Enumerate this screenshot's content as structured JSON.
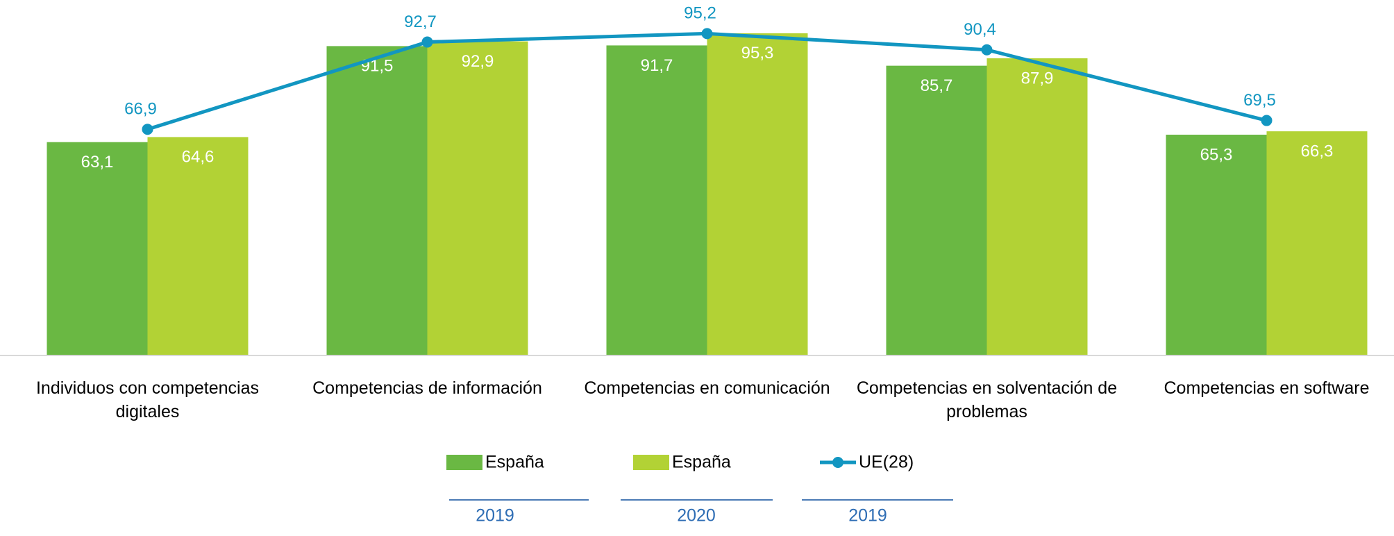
{
  "chart_data": {
    "type": "bar_line",
    "categories": [
      "Individuos con competencias digitales",
      "Competencias de información",
      "Competencias en comunicación",
      "Competencias en solventación de problemas",
      "Competencias en software"
    ],
    "series": [
      {
        "name": "España",
        "legend_sublabel": "2019",
        "type": "bar",
        "color": "#6ab843",
        "values": [
          63.1,
          91.5,
          91.7,
          85.7,
          65.3
        ],
        "value_labels": [
          "63,1",
          "91,5",
          "91,7",
          "85,7",
          "65,3"
        ]
      },
      {
        "name": "España",
        "legend_sublabel": "2020",
        "type": "bar",
        "color": "#b2d235",
        "values": [
          64.6,
          92.9,
          95.3,
          87.9,
          66.3
        ],
        "value_labels": [
          "64,6",
          "92,9",
          "95,3",
          "87,9",
          "66,3"
        ]
      },
      {
        "name": "UE(28)",
        "legend_sublabel": "2019",
        "type": "line",
        "color": "#1296c1",
        "values": [
          66.9,
          92.7,
          95.2,
          90.4,
          69.5
        ],
        "value_labels": [
          "66,9",
          "92,7",
          "95,2",
          "90,4",
          "69,5"
        ]
      }
    ],
    "ylim": [
      0,
      100
    ],
    "legend": "bottom"
  }
}
